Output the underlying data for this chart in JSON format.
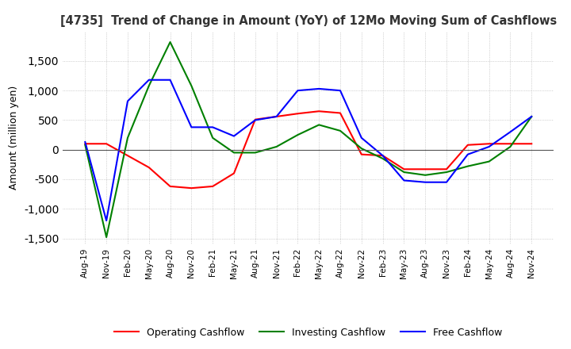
{
  "title": "[4735]  Trend of Change in Amount (YoY) of 12Mo Moving Sum of Cashflows",
  "ylabel": "Amount (million yen)",
  "ylim": [
    -1600,
    2000
  ],
  "yticks": [
    -1500,
    -1000,
    -500,
    0,
    500,
    1000,
    1500
  ],
  "x_labels": [
    "Aug-19",
    "Nov-19",
    "Feb-20",
    "May-20",
    "Aug-20",
    "Nov-20",
    "Feb-21",
    "May-21",
    "Aug-21",
    "Nov-21",
    "Feb-22",
    "May-22",
    "Aug-22",
    "Nov-22",
    "Feb-23",
    "May-23",
    "Aug-23",
    "Nov-23",
    "Feb-24",
    "May-24",
    "Aug-24",
    "Nov-24"
  ],
  "operating": [
    100,
    100,
    -100,
    -300,
    -620,
    -650,
    -620,
    -400,
    510,
    560,
    610,
    650,
    620,
    -80,
    -100,
    -330,
    -330,
    -330,
    80,
    100,
    100,
    100
  ],
  "investing": [
    80,
    -1480,
    200,
    1080,
    1820,
    1080,
    200,
    -50,
    -50,
    50,
    250,
    420,
    320,
    20,
    -150,
    -380,
    -430,
    -380,
    -280,
    -200,
    50,
    560
  ],
  "free": [
    130,
    -1200,
    820,
    1180,
    1180,
    380,
    380,
    230,
    500,
    560,
    1000,
    1030,
    1000,
    200,
    -100,
    -520,
    -550,
    -550,
    -80,
    50,
    300,
    560
  ],
  "line_colors": {
    "operating": "#ff0000",
    "investing": "#008000",
    "free": "#0000ff"
  },
  "legend_labels": [
    "Operating Cashflow",
    "Investing Cashflow",
    "Free Cashflow"
  ],
  "background_color": "#ffffff",
  "grid_color": "#b0b0b0",
  "grid_style": "dotted"
}
